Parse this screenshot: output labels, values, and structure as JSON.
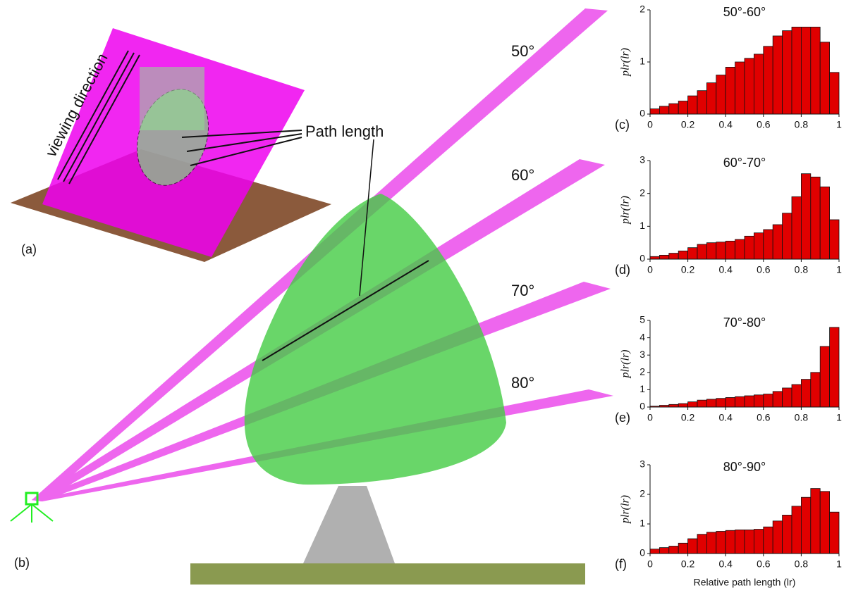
{
  "illustration": {
    "panel_a": "(a)",
    "panel_b": "(b)",
    "viewing_direction": "viewing direction",
    "path_length": "Path length",
    "angles": [
      "50°",
      "60°",
      "70°",
      "80°"
    ]
  },
  "chart_data": [
    {
      "type": "histogram",
      "title": "50°-60°",
      "panel": "(c)",
      "y_label": "plr(lr)",
      "color": "#e00000",
      "bins": [
        0,
        0.05,
        0.1,
        0.15,
        0.2,
        0.25,
        0.3,
        0.35,
        0.4,
        0.45,
        0.5,
        0.55,
        0.6,
        0.65,
        0.7,
        0.75,
        0.8,
        0.85,
        0.9,
        0.95,
        1
      ],
      "values": [
        0.1,
        0.15,
        0.2,
        0.25,
        0.35,
        0.45,
        0.6,
        0.75,
        0.9,
        1.0,
        1.07,
        1.15,
        1.3,
        1.5,
        1.6,
        1.67,
        1.67,
        1.67,
        1.38,
        0.8
      ],
      "xlim": [
        0,
        1
      ],
      "xticks": [
        0,
        0.2,
        0.4,
        0.6,
        0.8,
        1
      ],
      "ylim": [
        0,
        2
      ],
      "yticks": [
        0,
        1,
        2
      ]
    },
    {
      "type": "histogram",
      "title": "60°-70°",
      "panel": "(d)",
      "y_label": "plr(lr)",
      "color": "#e00000",
      "bins": [
        0,
        0.05,
        0.1,
        0.15,
        0.2,
        0.25,
        0.3,
        0.35,
        0.4,
        0.45,
        0.5,
        0.55,
        0.6,
        0.65,
        0.7,
        0.75,
        0.8,
        0.85,
        0.9,
        0.95,
        1
      ],
      "values": [
        0.08,
        0.12,
        0.18,
        0.25,
        0.35,
        0.45,
        0.5,
        0.52,
        0.55,
        0.6,
        0.7,
        0.8,
        0.9,
        1.05,
        1.4,
        1.9,
        2.6,
        2.5,
        2.2,
        1.2
      ],
      "xlim": [
        0,
        1
      ],
      "xticks": [
        0,
        0.2,
        0.4,
        0.6,
        0.8,
        1
      ],
      "ylim": [
        0,
        3
      ],
      "yticks": [
        0,
        1,
        2,
        3
      ]
    },
    {
      "type": "histogram",
      "title": "70°-80°",
      "panel": "(e)",
      "y_label": "plr(lr)",
      "color": "#e00000",
      "bins": [
        0,
        0.05,
        0.1,
        0.15,
        0.2,
        0.25,
        0.3,
        0.35,
        0.4,
        0.45,
        0.5,
        0.55,
        0.6,
        0.65,
        0.7,
        0.75,
        0.8,
        0.85,
        0.9,
        0.95,
        1
      ],
      "values": [
        0.05,
        0.1,
        0.15,
        0.2,
        0.3,
        0.4,
        0.45,
        0.5,
        0.55,
        0.6,
        0.65,
        0.7,
        0.75,
        0.9,
        1.1,
        1.3,
        1.6,
        2.0,
        3.5,
        4.6
      ],
      "xlim": [
        0,
        1
      ],
      "xticks": [
        0,
        0.2,
        0.4,
        0.6,
        0.8,
        1
      ],
      "ylim": [
        0,
        5
      ],
      "yticks": [
        0,
        1,
        2,
        3,
        4,
        5
      ]
    },
    {
      "type": "histogram",
      "title": "80°-90°",
      "panel": "(f)",
      "y_label": "plr(lr)",
      "x_label": "Relative path length (lr)",
      "color": "#e00000",
      "bins": [
        0,
        0.05,
        0.1,
        0.15,
        0.2,
        0.25,
        0.3,
        0.35,
        0.4,
        0.45,
        0.5,
        0.55,
        0.6,
        0.65,
        0.7,
        0.75,
        0.8,
        0.85,
        0.9,
        0.95,
        1
      ],
      "values": [
        0.15,
        0.2,
        0.25,
        0.35,
        0.5,
        0.65,
        0.72,
        0.75,
        0.78,
        0.8,
        0.8,
        0.82,
        0.9,
        1.1,
        1.3,
        1.6,
        1.9,
        2.2,
        2.1,
        1.4
      ],
      "xlim": [
        0,
        1
      ],
      "xticks": [
        0,
        0.2,
        0.4,
        0.6,
        0.8,
        1
      ],
      "ylim": [
        0,
        3
      ],
      "yticks": [
        0,
        1,
        2,
        3
      ]
    }
  ]
}
